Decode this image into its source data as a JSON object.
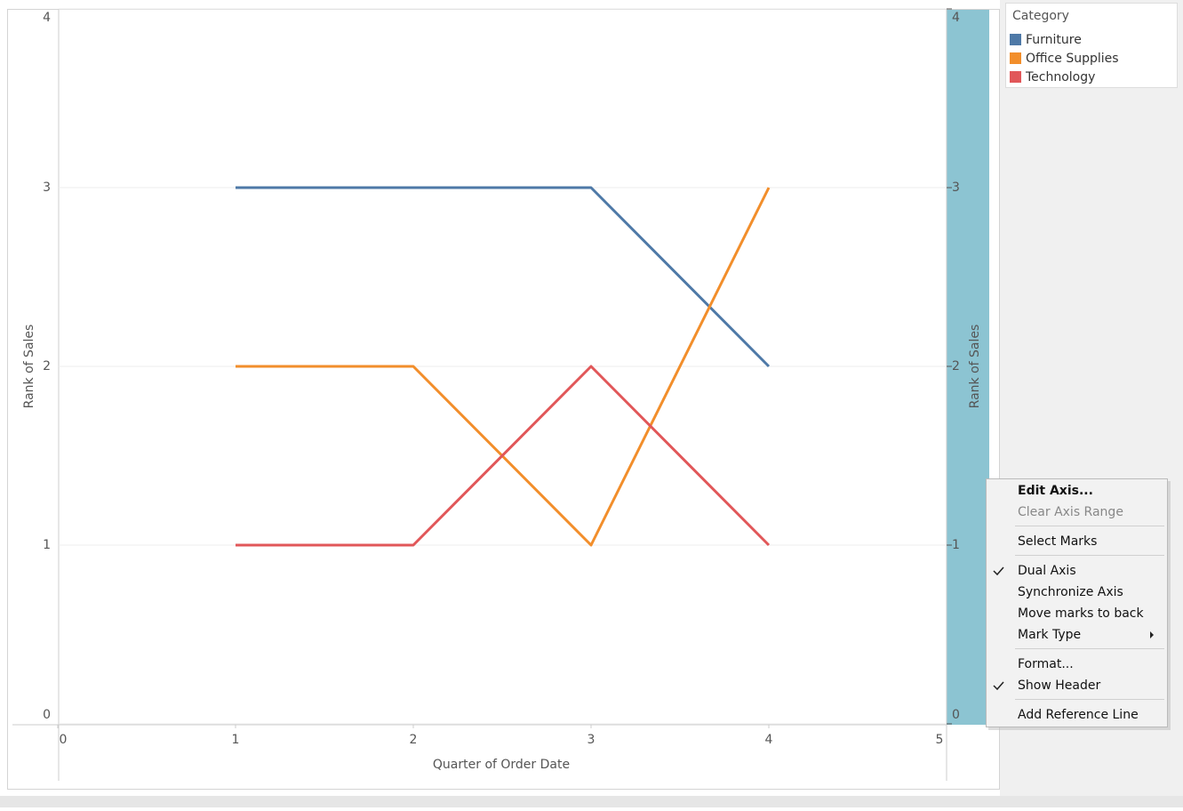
{
  "chart_data": {
    "type": "line",
    "x_label": "Quarter of Order Date",
    "y_label": "Rank of Sales",
    "y2_label": "Rank of Sales",
    "x": [
      1,
      2,
      3,
      4
    ],
    "xlim": [
      0,
      5
    ],
    "xticks": [
      0,
      1,
      2,
      3,
      4,
      5
    ],
    "ylim": [
      0,
      4
    ],
    "yticks": [
      0,
      1,
      2,
      3,
      4
    ],
    "y2lim": [
      0,
      4
    ],
    "y2ticks": [
      0,
      1,
      2,
      3,
      4
    ],
    "grid": true,
    "legend_title": "Category",
    "series": [
      {
        "name": "Furniture",
        "color": "#4e79a7",
        "values": [
          3,
          3,
          3,
          2
        ]
      },
      {
        "name": "Office Supplies",
        "color": "#f28e2b",
        "values": [
          2,
          2,
          1,
          3
        ]
      },
      {
        "name": "Technology",
        "color": "#e15759",
        "values": [
          1,
          1,
          2,
          1
        ]
      }
    ]
  },
  "context_menu": {
    "groups": [
      [
        {
          "label": "Edit Axis...",
          "bold": true
        },
        {
          "label": "Clear Axis Range",
          "disabled": true
        }
      ],
      [
        {
          "label": "Select Marks"
        }
      ],
      [
        {
          "label": "Dual Axis",
          "checked": true
        },
        {
          "label": "Synchronize Axis"
        },
        {
          "label": "Move marks to back"
        },
        {
          "label": "Mark Type",
          "submenu": true
        }
      ],
      [
        {
          "label": "Format..."
        },
        {
          "label": "Show Header",
          "checked": true
        }
      ],
      [
        {
          "label": "Add Reference Line"
        }
      ]
    ]
  }
}
